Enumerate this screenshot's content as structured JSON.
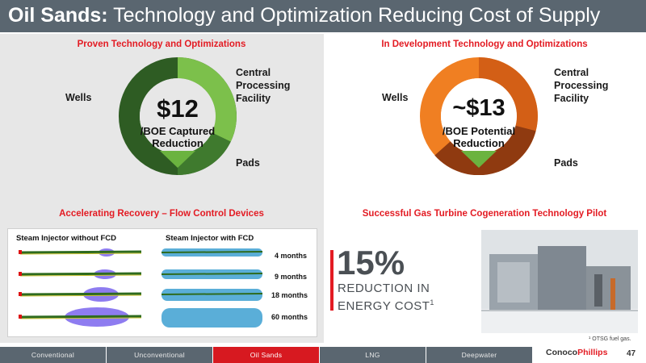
{
  "header": {
    "title_bold": "Oil Sands:",
    "title_rest": " Technology and Optimization Reducing Cost of Supply"
  },
  "left": {
    "section_title": "Proven Technology and Optimizations",
    "donut": {
      "value": "$12",
      "sub_line1": "/BOE Captured",
      "sub_line2": "Reduction",
      "label_wells": "Wells",
      "label_cpf_1": "Central",
      "label_cpf_2": "Processing",
      "label_cpf_3": "Facility",
      "label_pads": "Pads",
      "colors": {
        "wells": "#2e5c23",
        "cpf": "#7cc04b",
        "pads": "#3f7a2e",
        "arrow": "#6bb33f"
      }
    },
    "recovery_title": "Accelerating Recovery – Flow Control Devices",
    "fcd": {
      "head_without": "Steam Injector without FCD",
      "head_with": "Steam Injector with FCD",
      "months": [
        "4 months",
        "9 months",
        "18 months",
        "60 months"
      ]
    }
  },
  "right": {
    "section_title": "In Development Technology and Optimizations",
    "donut": {
      "value": "~$13",
      "sub_line1": "/BOE Potential",
      "sub_line2": "Reduction",
      "label_wells": "Wells",
      "label_cpf_1": "Central",
      "label_cpf_2": "Processing",
      "label_cpf_3": "Facility",
      "label_pads": "Pads",
      "colors": {
        "wells": "#f07f22",
        "cpf": "#d35f16",
        "pads": "#8f3a10",
        "arrow": "#6bb33f"
      }
    },
    "pilot_title": "Successful Gas Turbine Cogeneration Technology Pilot",
    "stat_value": "15%",
    "stat_line1": "REDUCTION IN",
    "stat_line2": "ENERGY COST",
    "stat_sup": "1",
    "footnote": "¹ OTSG fuel gas."
  },
  "footer": {
    "tabs": [
      "Conventional",
      "Unconventional",
      "Oil Sands",
      "LNG",
      "Deepwater"
    ],
    "active_tab": "Oil Sands",
    "logo_a": "Conoco",
    "logo_b": "Phillips",
    "page_number": "47"
  }
}
